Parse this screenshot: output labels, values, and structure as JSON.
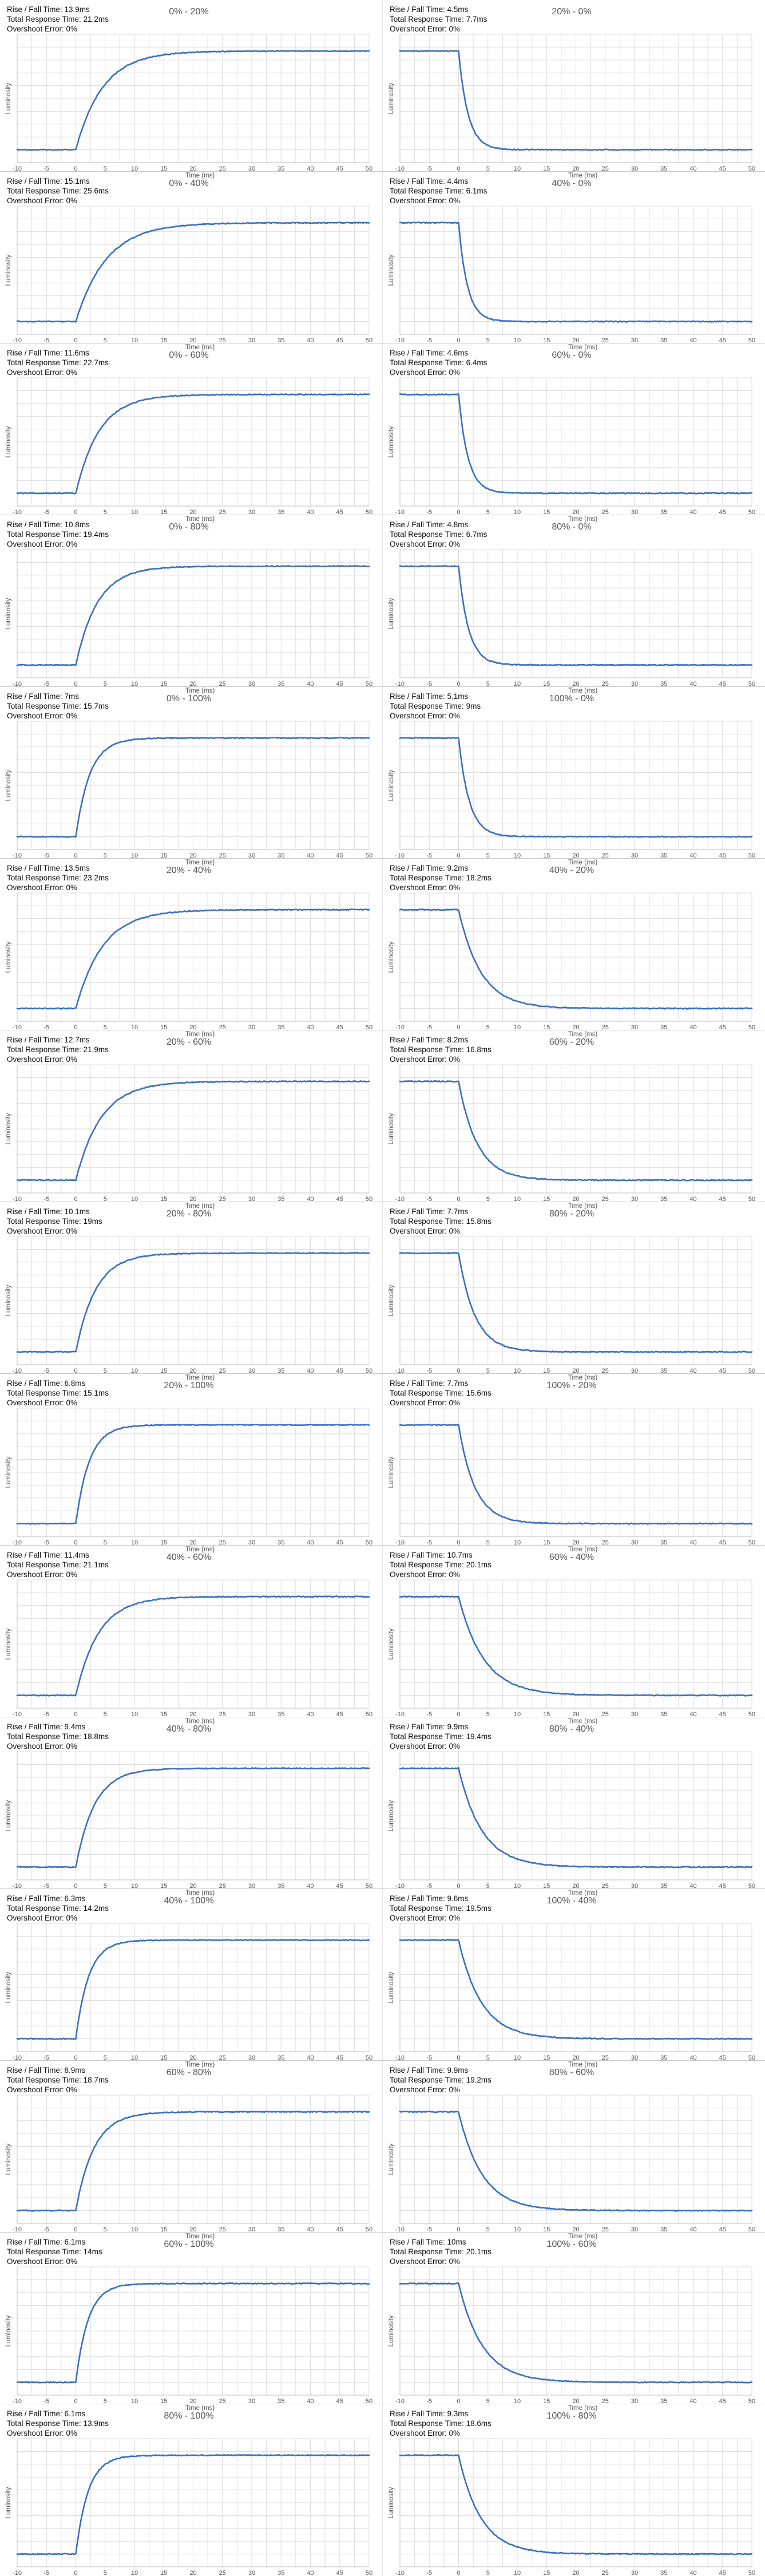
{
  "chart_data": [
    {
      "type": "line",
      "title": "0% - 20%",
      "stats": [
        "Rise / Fall Time: 13.9ms",
        "Total Response Time: 21.2ms",
        "Overshoot Error: 0%"
      ],
      "direction": "rise",
      "t_const": 4.6,
      "xlabel": "Time (ms)",
      "ylabel": "Luminosity",
      "xlim": [
        -10,
        50
      ],
      "x_ticks": [
        "-10",
        "-5",
        "0",
        "5",
        "10",
        "15",
        "20",
        "25",
        "30",
        "35",
        "40",
        "45",
        "50"
      ]
    },
    {
      "type": "line",
      "title": "20% - 0%",
      "stats": [
        "Rise / Fall Time: 4.5ms",
        "Total Response Time: 7.7ms",
        "Overshoot Error: 0%"
      ],
      "direction": "fall",
      "t_const": 1.6,
      "xlabel": "Time (ms)",
      "ylabel": "Luminosity",
      "xlim": [
        -10,
        50
      ],
      "x_ticks": [
        "-10",
        "-5",
        "0",
        "5",
        "10",
        "15",
        "20",
        "25",
        "30",
        "35",
        "40",
        "45",
        "50"
      ]
    },
    {
      "type": "line",
      "title": "0% - 40%",
      "stats": [
        "Rise / Fall Time: 15.1ms",
        "Total Response Time: 25.6ms",
        "Overshoot Error: 0%"
      ],
      "direction": "rise",
      "t_const": 5.2,
      "xlabel": "Time (ms)",
      "ylabel": "Luminosity",
      "xlim": [
        -10,
        50
      ],
      "x_ticks": [
        "-10",
        "-5",
        "0",
        "5",
        "10",
        "15",
        "20",
        "25",
        "30",
        "35",
        "40",
        "45",
        "50"
      ]
    },
    {
      "type": "line",
      "title": "40% - 0%",
      "stats": [
        "Rise / Fall Time: 4.4ms",
        "Total Response Time: 6.1ms",
        "Overshoot Error: 0%"
      ],
      "direction": "fall",
      "t_const": 1.5,
      "xlabel": "Time (ms)",
      "ylabel": "Luminosity",
      "xlim": [
        -10,
        50
      ],
      "x_ticks": [
        "-10",
        "-5",
        "0",
        "5",
        "10",
        "15",
        "20",
        "25",
        "30",
        "35",
        "40",
        "45",
        "50"
      ]
    },
    {
      "type": "line",
      "title": "0% - 60%",
      "stats": [
        "Rise / Fall Time: 11.6ms",
        "Total Response Time: 22.7ms",
        "Overshoot Error: 0%"
      ],
      "direction": "rise",
      "t_const": 4.0,
      "xlabel": "Time (ms)",
      "ylabel": "Luminosity",
      "xlim": [
        -10,
        50
      ],
      "x_ticks": [
        "-10",
        "-5",
        "0",
        "5",
        "10",
        "15",
        "20",
        "25",
        "30",
        "35",
        "40",
        "45",
        "50"
      ]
    },
    {
      "type": "line",
      "title": "60% - 0%",
      "stats": [
        "Rise / Fall Time: 4.6ms",
        "Total Response Time: 6.4ms",
        "Overshoot Error: 0%"
      ],
      "direction": "fall",
      "t_const": 1.6,
      "xlabel": "Time (ms)",
      "ylabel": "Luminosity",
      "xlim": [
        -10,
        50
      ],
      "x_ticks": [
        "-10",
        "-5",
        "0",
        "5",
        "10",
        "15",
        "20",
        "25",
        "30",
        "35",
        "40",
        "45",
        "50"
      ]
    },
    {
      "type": "line",
      "title": "0% - 80%",
      "stats": [
        "Rise / Fall Time: 10.8ms",
        "Total Response Time: 19.4ms",
        "Overshoot Error: 0%"
      ],
      "direction": "rise",
      "t_const": 3.7,
      "xlabel": "Time (ms)",
      "ylabel": "Luminosity",
      "xlim": [
        -10,
        50
      ],
      "x_ticks": [
        "-10",
        "-5",
        "0",
        "5",
        "10",
        "15",
        "20",
        "25",
        "30",
        "35",
        "40",
        "45",
        "50"
      ]
    },
    {
      "type": "line",
      "title": "80% - 0%",
      "stats": [
        "Rise / Fall Time: 4.8ms",
        "Total Response Time: 6.7ms",
        "Overshoot Error: 0%"
      ],
      "direction": "fall",
      "t_const": 1.7,
      "xlabel": "Time (ms)",
      "ylabel": "Luminosity",
      "xlim": [
        -10,
        50
      ],
      "x_ticks": [
        "-10",
        "-5",
        "0",
        "5",
        "10",
        "15",
        "20",
        "25",
        "30",
        "35",
        "40",
        "45",
        "50"
      ]
    },
    {
      "type": "line",
      "title": "0% - 100%",
      "stats": [
        "Rise / Fall Time: 7ms",
        "Total Response Time: 15.7ms",
        "Overshoot Error: 0%"
      ],
      "direction": "rise",
      "t_const": 2.4,
      "xlabel": "Time (ms)",
      "ylabel": "Luminosity",
      "xlim": [
        -10,
        50
      ],
      "x_ticks": [
        "-10",
        "-5",
        "0",
        "5",
        "10",
        "15",
        "20",
        "25",
        "30",
        "35",
        "40",
        "45",
        "50"
      ]
    },
    {
      "type": "line",
      "title": "100% - 0%",
      "stats": [
        "Rise / Fall Time: 5.1ms",
        "Total Response Time: 9ms",
        "Overshoot Error: 0%"
      ],
      "direction": "fall",
      "t_const": 1.8,
      "xlabel": "Time (ms)",
      "ylabel": "Luminosity",
      "xlim": [
        -10,
        50
      ],
      "x_ticks": [
        "-10",
        "-5",
        "0",
        "5",
        "10",
        "15",
        "20",
        "25",
        "30",
        "35",
        "40",
        "45",
        "50"
      ]
    },
    {
      "type": "line",
      "title": "20% - 40%",
      "stats": [
        "Rise / Fall Time: 13.5ms",
        "Total Response Time: 23.2ms",
        "Overshoot Error: 0%"
      ],
      "direction": "rise",
      "t_const": 4.6,
      "xlabel": "Time (ms)",
      "ylabel": "Luminosity",
      "xlim": [
        -10,
        50
      ],
      "x_ticks": [
        "-10",
        "-5",
        "0",
        "5",
        "10",
        "15",
        "20",
        "25",
        "30",
        "35",
        "40",
        "45",
        "50"
      ]
    },
    {
      "type": "line",
      "title": "40% - 20%",
      "stats": [
        "Rise / Fall Time: 9.2ms",
        "Total Response Time: 18.2ms",
        "Overshoot Error: 0%"
      ],
      "direction": "fall",
      "t_const": 3.8,
      "xlabel": "Time (ms)",
      "ylabel": "Luminosity",
      "xlim": [
        -10,
        50
      ],
      "x_ticks": [
        "-10",
        "-5",
        "0",
        "5",
        "10",
        "15",
        "20",
        "25",
        "30",
        "35",
        "40",
        "45",
        "50"
      ]
    },
    {
      "type": "line",
      "title": "20% - 60%",
      "stats": [
        "Rise / Fall Time: 12.7ms",
        "Total Response Time: 21.9ms",
        "Overshoot Error: 0%"
      ],
      "direction": "rise",
      "t_const": 4.3,
      "xlabel": "Time (ms)",
      "ylabel": "Luminosity",
      "xlim": [
        -10,
        50
      ],
      "x_ticks": [
        "-10",
        "-5",
        "0",
        "5",
        "10",
        "15",
        "20",
        "25",
        "30",
        "35",
        "40",
        "45",
        "50"
      ]
    },
    {
      "type": "line",
      "title": "60% - 20%",
      "stats": [
        "Rise / Fall Time: 8.2ms",
        "Total Response Time: 16.8ms",
        "Overshoot Error: 0%"
      ],
      "direction": "fall",
      "t_const": 3.2,
      "xlabel": "Time (ms)",
      "ylabel": "Luminosity",
      "xlim": [
        -10,
        50
      ],
      "x_ticks": [
        "-10",
        "-5",
        "0",
        "5",
        "10",
        "15",
        "20",
        "25",
        "30",
        "35",
        "40",
        "45",
        "50"
      ]
    },
    {
      "type": "line",
      "title": "20% - 80%",
      "stats": [
        "Rise / Fall Time: 10.1ms",
        "Total Response Time: 19ms",
        "Overshoot Error: 0%"
      ],
      "direction": "rise",
      "t_const": 3.4,
      "xlabel": "Time (ms)",
      "ylabel": "Luminosity",
      "xlim": [
        -10,
        50
      ],
      "x_ticks": [
        "-10",
        "-5",
        "0",
        "5",
        "10",
        "15",
        "20",
        "25",
        "30",
        "35",
        "40",
        "45",
        "50"
      ]
    },
    {
      "type": "line",
      "title": "80% - 20%",
      "stats": [
        "Rise / Fall Time: 7.7ms",
        "Total Response Time: 15.8ms",
        "Overshoot Error: 0%"
      ],
      "direction": "fall",
      "t_const": 2.8,
      "xlabel": "Time (ms)",
      "ylabel": "Luminosity",
      "xlim": [
        -10,
        50
      ],
      "x_ticks": [
        "-10",
        "-5",
        "0",
        "5",
        "10",
        "15",
        "20",
        "25",
        "30",
        "35",
        "40",
        "45",
        "50"
      ]
    },
    {
      "type": "line",
      "title": "20% - 100%",
      "stats": [
        "Rise / Fall Time: 6.8ms",
        "Total Response Time: 15.1ms",
        "Overshoot Error: 0%"
      ],
      "direction": "rise",
      "t_const": 2.3,
      "xlabel": "Time (ms)",
      "ylabel": "Luminosity",
      "xlim": [
        -10,
        50
      ],
      "x_ticks": [
        "-10",
        "-5",
        "0",
        "5",
        "10",
        "15",
        "20",
        "25",
        "30",
        "35",
        "40",
        "45",
        "50"
      ]
    },
    {
      "type": "line",
      "title": "100% - 20%",
      "stats": [
        "Rise / Fall Time: 7.7ms",
        "Total Response Time: 15.6ms",
        "Overshoot Error: 0%"
      ],
      "direction": "fall",
      "t_const": 2.8,
      "xlabel": "Time (ms)",
      "ylabel": "Luminosity",
      "xlim": [
        -10,
        50
      ],
      "x_ticks": [
        "-10",
        "-5",
        "0",
        "5",
        "10",
        "15",
        "20",
        "25",
        "30",
        "35",
        "40",
        "45",
        "50"
      ]
    },
    {
      "type": "line",
      "title": "40% - 60%",
      "stats": [
        "Rise / Fall Time: 11.4ms",
        "Total Response Time: 21.1ms",
        "Overshoot Error: 0%"
      ],
      "direction": "rise",
      "t_const": 3.9,
      "xlabel": "Time (ms)",
      "ylabel": "Luminosity",
      "xlim": [
        -10,
        50
      ],
      "x_ticks": [
        "-10",
        "-5",
        "0",
        "5",
        "10",
        "15",
        "20",
        "25",
        "30",
        "35",
        "40",
        "45",
        "50"
      ]
    },
    {
      "type": "line",
      "title": "60% - 40%",
      "stats": [
        "Rise / Fall Time: 10.7ms",
        "Total Response Time: 20.1ms",
        "Overshoot Error: 0%"
      ],
      "direction": "fall",
      "t_const": 4.3,
      "xlabel": "Time (ms)",
      "ylabel": "Luminosity",
      "xlim": [
        -10,
        50
      ],
      "x_ticks": [
        "-10",
        "-5",
        "0",
        "5",
        "10",
        "15",
        "20",
        "25",
        "30",
        "35",
        "40",
        "45",
        "50"
      ]
    },
    {
      "type": "line",
      "title": "40% - 80%",
      "stats": [
        "Rise / Fall Time: 9.4ms",
        "Total Response Time: 18.8ms",
        "Overshoot Error: 0%"
      ],
      "direction": "rise",
      "t_const": 3.2,
      "xlabel": "Time (ms)",
      "ylabel": "Luminosity",
      "xlim": [
        -10,
        50
      ],
      "x_ticks": [
        "-10",
        "-5",
        "0",
        "5",
        "10",
        "15",
        "20",
        "25",
        "30",
        "35",
        "40",
        "45",
        "50"
      ]
    },
    {
      "type": "line",
      "title": "80% - 40%",
      "stats": [
        "Rise / Fall Time: 9.9ms",
        "Total Response Time: 19.4ms",
        "Overshoot Error: 0%"
      ],
      "direction": "fall",
      "t_const": 4.0,
      "xlabel": "Time (ms)",
      "ylabel": "Luminosity",
      "xlim": [
        -10,
        50
      ],
      "x_ticks": [
        "-10",
        "-5",
        "0",
        "5",
        "10",
        "15",
        "20",
        "25",
        "30",
        "35",
        "40",
        "45",
        "50"
      ]
    },
    {
      "type": "line",
      "title": "40% - 100%",
      "stats": [
        "Rise / Fall Time: 6.3ms",
        "Total Response Time: 14.2ms",
        "Overshoot Error: 0%"
      ],
      "direction": "rise",
      "t_const": 2.2,
      "xlabel": "Time (ms)",
      "ylabel": "Luminosity",
      "xlim": [
        -10,
        50
      ],
      "x_ticks": [
        "-10",
        "-5",
        "0",
        "5",
        "10",
        "15",
        "20",
        "25",
        "30",
        "35",
        "40",
        "45",
        "50"
      ]
    },
    {
      "type": "line",
      "title": "100% - 40%",
      "stats": [
        "Rise / Fall Time: 9.6ms",
        "Total Response Time: 19.5ms",
        "Overshoot Error: 0%"
      ],
      "direction": "fall",
      "t_const": 3.9,
      "xlabel": "Time (ms)",
      "ylabel": "Luminosity",
      "xlim": [
        -10,
        50
      ],
      "x_ticks": [
        "-10",
        "-5",
        "0",
        "5",
        "10",
        "15",
        "20",
        "25",
        "30",
        "35",
        "40",
        "45",
        "50"
      ]
    },
    {
      "type": "line",
      "title": "60% - 80%",
      "stats": [
        "Rise / Fall Time: 8.9ms",
        "Total Response Time: 18.7ms",
        "Overshoot Error: 0%"
      ],
      "direction": "rise",
      "t_const": 3.1,
      "xlabel": "Time (ms)",
      "ylabel": "Luminosity",
      "xlim": [
        -10,
        50
      ],
      "x_ticks": [
        "-10",
        "-5",
        "0",
        "5",
        "10",
        "15",
        "20",
        "25",
        "30",
        "35",
        "40",
        "45",
        "50"
      ]
    },
    {
      "type": "line",
      "title": "80% - 60%",
      "stats": [
        "Rise / Fall Time: 9.9ms",
        "Total Response Time: 19.2ms",
        "Overshoot Error: 0%"
      ],
      "direction": "fall",
      "t_const": 4.0,
      "xlabel": "Time (ms)",
      "ylabel": "Luminosity",
      "xlim": [
        -10,
        50
      ],
      "x_ticks": [
        "-10",
        "-5",
        "0",
        "5",
        "10",
        "15",
        "20",
        "25",
        "30",
        "35",
        "40",
        "45",
        "50"
      ]
    },
    {
      "type": "line",
      "title": "60% - 100%",
      "stats": [
        "Rise / Fall Time: 6.1ms",
        "Total Response Time: 14ms",
        "Overshoot Error: 0%"
      ],
      "direction": "rise",
      "t_const": 2.1,
      "xlabel": "Time (ms)",
      "ylabel": "Luminosity",
      "xlim": [
        -10,
        50
      ],
      "x_ticks": [
        "-10",
        "-5",
        "0",
        "5",
        "10",
        "15",
        "20",
        "25",
        "30",
        "35",
        "40",
        "45",
        "50"
      ]
    },
    {
      "type": "line",
      "title": "100% - 60%",
      "stats": [
        "Rise / Fall Time: 10ms",
        "Total Response Time: 20.1ms",
        "Overshoot Error: 0%"
      ],
      "direction": "fall",
      "t_const": 4.1,
      "xlabel": "Time (ms)",
      "ylabel": "Luminosity",
      "xlim": [
        -10,
        50
      ],
      "x_ticks": [
        "-10",
        "-5",
        "0",
        "5",
        "10",
        "15",
        "20",
        "25",
        "30",
        "35",
        "40",
        "45",
        "50"
      ]
    },
    {
      "type": "line",
      "title": "80% - 100%",
      "stats": [
        "Rise / Fall Time: 6.1ms",
        "Total Response Time: 13.9ms",
        "Overshoot Error: 0%"
      ],
      "direction": "rise",
      "t_const": 2.1,
      "xlabel": "Time (ms)",
      "ylabel": "Luminosity",
      "xlim": [
        -10,
        50
      ],
      "x_ticks": [
        "-10",
        "-5",
        "0",
        "5",
        "10",
        "15",
        "20",
        "25",
        "30",
        "35",
        "40",
        "45",
        "50"
      ]
    },
    {
      "type": "line",
      "title": "100% - 80%",
      "stats": [
        "Rise / Fall Time: 9.3ms",
        "Total Response Time: 18.6ms",
        "Overshoot Error: 0%"
      ],
      "direction": "fall",
      "t_const": 3.8,
      "xlabel": "Time (ms)",
      "ylabel": "Luminosity",
      "xlim": [
        -10,
        50
      ],
      "x_ticks": [
        "-10",
        "-5",
        "0",
        "5",
        "10",
        "15",
        "20",
        "25",
        "30",
        "35",
        "40",
        "45",
        "50"
      ]
    }
  ],
  "colors": {
    "series": "#3a6fbf",
    "grid": "#dcdcdc",
    "divider": "#c8c8c8"
  }
}
